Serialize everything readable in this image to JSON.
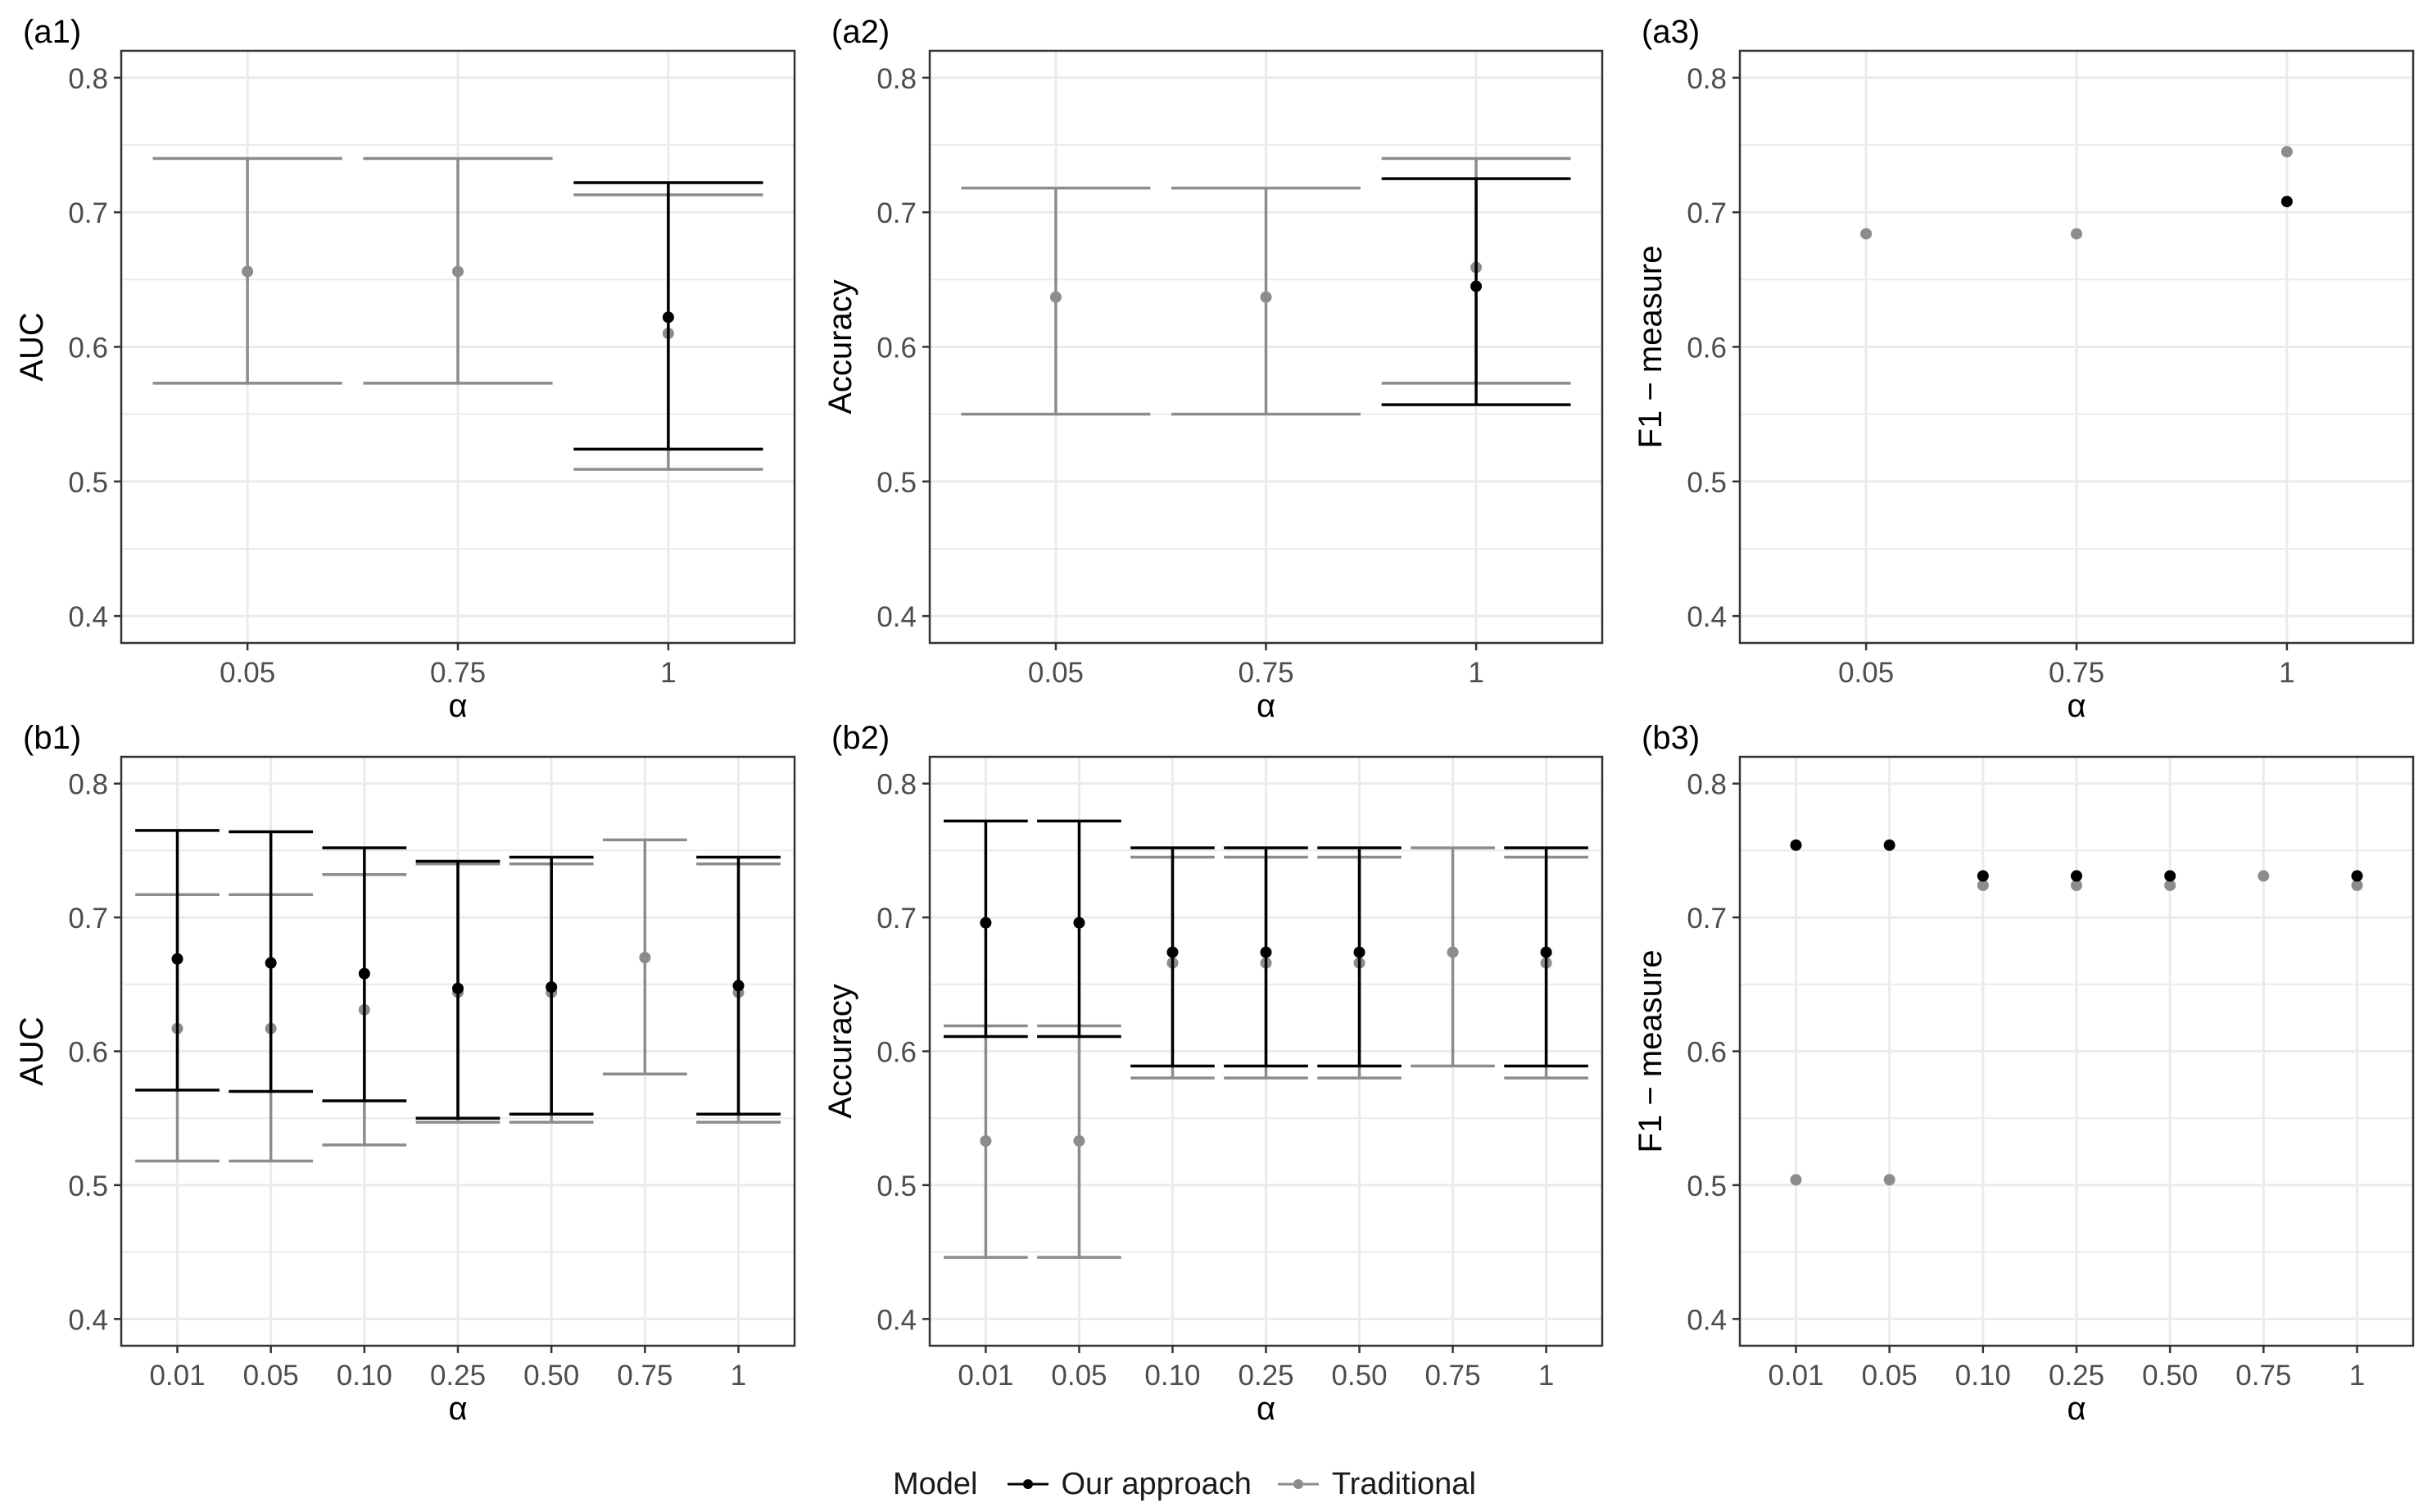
{
  "colors": {
    "our": "#000000",
    "traditional": "#8c8c8c",
    "grid": "#ebebeb",
    "panel_border": "#333333"
  },
  "legend": {
    "title": "Model",
    "items": [
      {
        "label": "Our approach",
        "color": "#000000"
      },
      {
        "label": "Traditional",
        "color": "#8c8c8c"
      }
    ]
  },
  "chart_data": [
    {
      "tag": "(a1)",
      "type": "errorbar",
      "ylabel": "AUC",
      "xlabel": "α",
      "categories": [
        "0.05",
        "0.75",
        "1"
      ],
      "ylim": [
        0.38,
        0.82
      ],
      "yticks": [
        0.4,
        0.5,
        0.6,
        0.7,
        0.8
      ],
      "grid": true,
      "series": [
        {
          "name": "Our approach",
          "color": "#000000",
          "x": [
            "1"
          ],
          "y": [
            0.622
          ],
          "ymin": [
            0.524
          ],
          "ymax": [
            0.722
          ]
        },
        {
          "name": "Traditional",
          "color": "#8c8c8c",
          "x": [
            "0.05",
            "0.75",
            "1"
          ],
          "y": [
            0.656,
            0.656,
            0.61
          ],
          "ymin": [
            0.573,
            0.573,
            0.509
          ],
          "ymax": [
            0.74,
            0.74,
            0.713
          ]
        }
      ]
    },
    {
      "tag": "(a2)",
      "type": "errorbar",
      "ylabel": "Accuracy",
      "xlabel": "α",
      "categories": [
        "0.05",
        "0.75",
        "1"
      ],
      "ylim": [
        0.38,
        0.82
      ],
      "yticks": [
        0.4,
        0.5,
        0.6,
        0.7,
        0.8
      ],
      "grid": true,
      "series": [
        {
          "name": "Our approach",
          "color": "#000000",
          "x": [
            "1"
          ],
          "y": [
            0.645
          ],
          "ymin": [
            0.557
          ],
          "ymax": [
            0.725
          ]
        },
        {
          "name": "Traditional",
          "color": "#8c8c8c",
          "x": [
            "0.05",
            "0.75",
            "1"
          ],
          "y": [
            0.637,
            0.637,
            0.659
          ],
          "ymin": [
            0.55,
            0.55,
            0.573
          ],
          "ymax": [
            0.718,
            0.718,
            0.74
          ]
        }
      ]
    },
    {
      "tag": "(a3)",
      "type": "scatter",
      "ylabel": "F1 − measure",
      "xlabel": "α",
      "categories": [
        "0.05",
        "0.75",
        "1"
      ],
      "ylim": [
        0.38,
        0.82
      ],
      "yticks": [
        0.4,
        0.5,
        0.6,
        0.7,
        0.8
      ],
      "grid": true,
      "series": [
        {
          "name": "Our approach",
          "color": "#000000",
          "x": [
            "1"
          ],
          "y": [
            0.708
          ]
        },
        {
          "name": "Traditional",
          "color": "#8c8c8c",
          "x": [
            "0.05",
            "0.75",
            "1"
          ],
          "y": [
            0.684,
            0.684,
            0.745
          ]
        }
      ]
    },
    {
      "tag": "(b1)",
      "type": "errorbar",
      "ylabel": "AUC",
      "xlabel": "α",
      "categories": [
        "0.01",
        "0.05",
        "0.10",
        "0.25",
        "0.50",
        "0.75",
        "1"
      ],
      "ylim": [
        0.38,
        0.82
      ],
      "yticks": [
        0.4,
        0.5,
        0.6,
        0.7,
        0.8
      ],
      "grid": true,
      "series": [
        {
          "name": "Our approach",
          "color": "#000000",
          "x": [
            "0.01",
            "0.05",
            "0.10",
            "0.25",
            "0.50",
            "1"
          ],
          "y": [
            0.669,
            0.666,
            0.658,
            0.647,
            0.648,
            0.649
          ],
          "ymin": [
            0.571,
            0.57,
            0.563,
            0.55,
            0.553,
            0.553
          ],
          "ymax": [
            0.765,
            0.764,
            0.752,
            0.742,
            0.745,
            0.745
          ]
        },
        {
          "name": "Traditional",
          "color": "#8c8c8c",
          "x": [
            "0.01",
            "0.05",
            "0.10",
            "0.25",
            "0.50",
            "0.75",
            "1"
          ],
          "y": [
            0.617,
            0.617,
            0.631,
            0.644,
            0.644,
            0.67,
            0.644
          ],
          "ymin": [
            0.518,
            0.518,
            0.53,
            0.547,
            0.547,
            0.583,
            0.547
          ],
          "ymax": [
            0.717,
            0.717,
            0.732,
            0.74,
            0.74,
            0.758,
            0.74
          ]
        }
      ]
    },
    {
      "tag": "(b2)",
      "type": "errorbar",
      "ylabel": "Accuracy",
      "xlabel": "α",
      "categories": [
        "0.01",
        "0.05",
        "0.10",
        "0.25",
        "0.50",
        "0.75",
        "1"
      ],
      "ylim": [
        0.38,
        0.82
      ],
      "yticks": [
        0.4,
        0.5,
        0.6,
        0.7,
        0.8
      ],
      "grid": true,
      "series": [
        {
          "name": "Our approach",
          "color": "#000000",
          "x": [
            "0.01",
            "0.05",
            "0.10",
            "0.25",
            "0.50",
            "1"
          ],
          "y": [
            0.696,
            0.696,
            0.674,
            0.674,
            0.674,
            0.674
          ],
          "ymin": [
            0.611,
            0.611,
            0.589,
            0.589,
            0.589,
            0.589
          ],
          "ymax": [
            0.772,
            0.772,
            0.752,
            0.752,
            0.752,
            0.752
          ]
        },
        {
          "name": "Traditional",
          "color": "#8c8c8c",
          "x": [
            "0.01",
            "0.05",
            "0.10",
            "0.25",
            "0.50",
            "0.75",
            "1"
          ],
          "y": [
            0.533,
            0.533,
            0.666,
            0.666,
            0.666,
            0.674,
            0.666
          ],
          "ymin": [
            0.446,
            0.446,
            0.58,
            0.58,
            0.58,
            0.589,
            0.58
          ],
          "ymax": [
            0.619,
            0.619,
            0.745,
            0.745,
            0.745,
            0.752,
            0.745
          ]
        }
      ]
    },
    {
      "tag": "(b3)",
      "type": "scatter",
      "ylabel": "F1 − measure",
      "xlabel": "α",
      "categories": [
        "0.01",
        "0.05",
        "0.10",
        "0.25",
        "0.50",
        "0.75",
        "1"
      ],
      "ylim": [
        0.38,
        0.82
      ],
      "yticks": [
        0.4,
        0.5,
        0.6,
        0.7,
        0.8
      ],
      "grid": true,
      "series": [
        {
          "name": "Our approach",
          "color": "#000000",
          "x": [
            "0.01",
            "0.05",
            "0.10",
            "0.25",
            "0.50",
            "1"
          ],
          "y": [
            0.754,
            0.754,
            0.731,
            0.731,
            0.731,
            0.731
          ]
        },
        {
          "name": "Traditional",
          "color": "#8c8c8c",
          "x": [
            "0.01",
            "0.05",
            "0.10",
            "0.25",
            "0.50",
            "0.75",
            "1"
          ],
          "y": [
            0.504,
            0.504,
            0.724,
            0.724,
            0.724,
            0.731,
            0.724
          ]
        }
      ]
    }
  ]
}
